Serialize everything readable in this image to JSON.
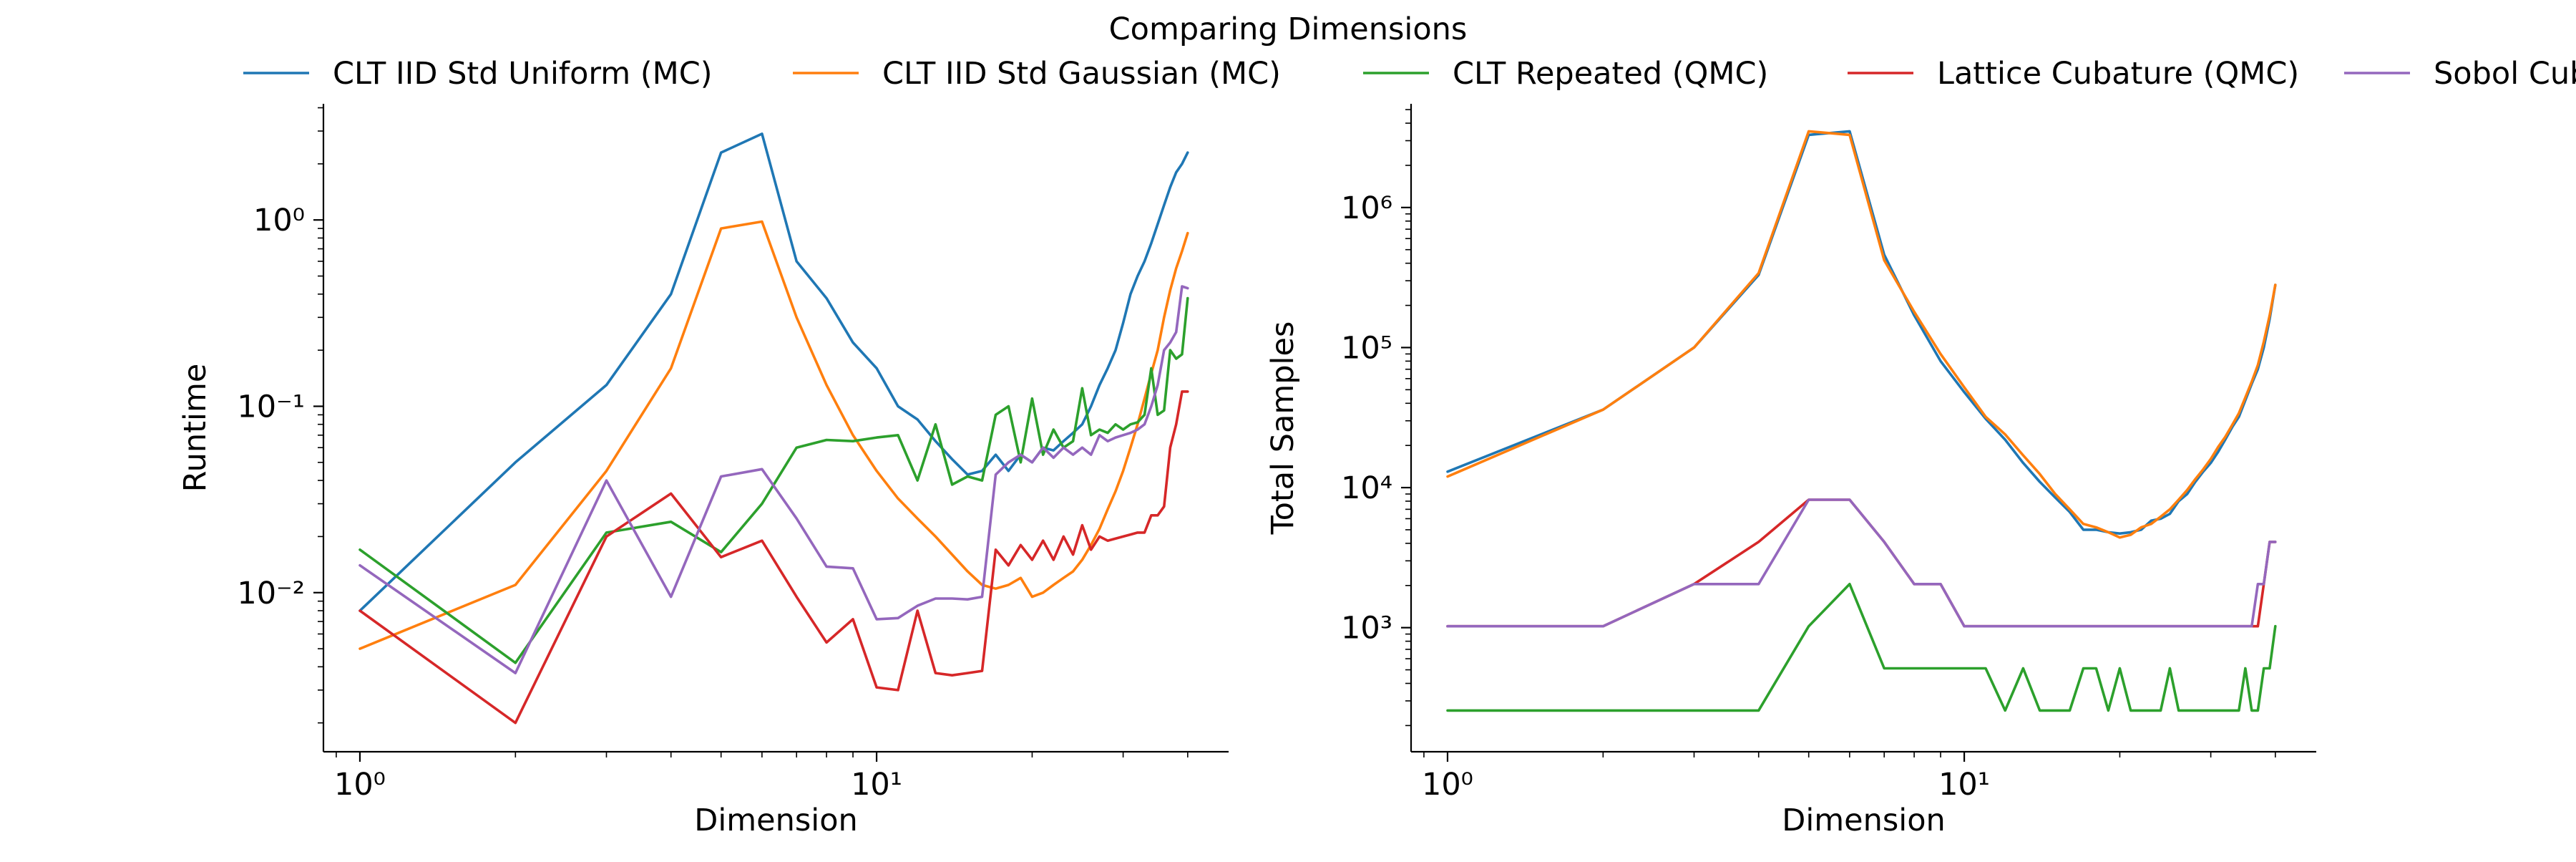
{
  "figure": {
    "title": "Comparing Dimensions"
  },
  "legend": [
    {
      "label": "CLT IID Std Uniform (MC)",
      "color": "#1f77b4"
    },
    {
      "label": "CLT IID Std Gaussian (MC)",
      "color": "#ff7f0e"
    },
    {
      "label": "CLT Repeated (QMC)",
      "color": "#2ca02c"
    },
    {
      "label": "Lattice Cubature (QMC)",
      "color": "#d62728"
    },
    {
      "label": "Sobol Cubature (QMC)",
      "color": "#9467bd"
    }
  ],
  "chart_data": [
    {
      "type": "line",
      "xlabel": "Dimension",
      "ylabel": "Runtime",
      "xscale": "log",
      "yscale": "log",
      "xlim": [
        0.85,
        48
      ],
      "ylim": [
        0.0014,
        4.2
      ],
      "xticks": [
        {
          "value": 1,
          "label": "10^0"
        },
        {
          "value": 10,
          "label": "10^1"
        }
      ],
      "yticks": [
        {
          "value": 0.01,
          "label": "10^-2"
        },
        {
          "value": 0.1,
          "label": "10^-1"
        },
        {
          "value": 1,
          "label": "10^0"
        }
      ],
      "grid": false,
      "series": [
        {
          "name": "CLT IID Std Uniform (MC)",
          "color": "#1f77b4",
          "x": [
            1,
            2,
            3,
            4,
            5,
            6,
            7,
            8,
            9,
            10,
            11,
            12,
            13,
            14,
            15,
            16,
            17,
            18,
            19,
            20,
            21,
            22,
            23,
            24,
            25,
            26,
            27,
            28,
            29,
            30,
            31,
            32,
            33,
            34,
            35,
            36,
            37,
            38,
            39,
            40
          ],
          "y": [
            0.008,
            0.05,
            0.13,
            0.4,
            2.3,
            2.9,
            0.6,
            0.38,
            0.22,
            0.16,
            0.1,
            0.085,
            0.065,
            0.052,
            0.043,
            0.045,
            0.055,
            0.045,
            0.055,
            0.05,
            0.06,
            0.058,
            0.065,
            0.072,
            0.08,
            0.1,
            0.13,
            0.16,
            0.2,
            0.28,
            0.4,
            0.5,
            0.6,
            0.75,
            0.95,
            1.2,
            1.5,
            1.8,
            2.0,
            2.3
          ]
        },
        {
          "name": "CLT IID Std Gaussian (MC)",
          "color": "#ff7f0e",
          "x": [
            1,
            2,
            3,
            4,
            5,
            6,
            7,
            8,
            9,
            10,
            11,
            12,
            13,
            14,
            15,
            16,
            17,
            18,
            19,
            20,
            21,
            22,
            23,
            24,
            25,
            26,
            27,
            28,
            29,
            30,
            31,
            32,
            33,
            34,
            35,
            36,
            37,
            38,
            39,
            40
          ],
          "y": [
            0.005,
            0.011,
            0.045,
            0.16,
            0.9,
            0.98,
            0.3,
            0.13,
            0.07,
            0.045,
            0.032,
            0.025,
            0.02,
            0.016,
            0.013,
            0.011,
            0.0105,
            0.011,
            0.012,
            0.0095,
            0.01,
            0.011,
            0.012,
            0.013,
            0.015,
            0.018,
            0.022,
            0.028,
            0.035,
            0.045,
            0.06,
            0.08,
            0.11,
            0.15,
            0.2,
            0.3,
            0.42,
            0.55,
            0.68,
            0.85
          ]
        },
        {
          "name": "CLT Repeated (QMC)",
          "color": "#2ca02c",
          "x": [
            1,
            2,
            3,
            4,
            5,
            6,
            7,
            8,
            9,
            10,
            11,
            12,
            13,
            14,
            15,
            16,
            17,
            18,
            19,
            20,
            21,
            22,
            23,
            24,
            25,
            26,
            27,
            28,
            29,
            30,
            31,
            32,
            33,
            34,
            35,
            36,
            37,
            38,
            39,
            40
          ],
          "y": [
            0.017,
            0.0042,
            0.021,
            0.024,
            0.0165,
            0.03,
            0.06,
            0.066,
            0.065,
            0.068,
            0.07,
            0.04,
            0.08,
            0.038,
            0.042,
            0.04,
            0.09,
            0.1,
            0.05,
            0.11,
            0.055,
            0.075,
            0.06,
            0.065,
            0.125,
            0.07,
            0.075,
            0.072,
            0.08,
            0.075,
            0.08,
            0.082,
            0.09,
            0.16,
            0.09,
            0.095,
            0.2,
            0.18,
            0.19,
            0.38
          ]
        },
        {
          "name": "Lattice Cubature (QMC)",
          "color": "#d62728",
          "x": [
            1,
            2,
            3,
            4,
            5,
            6,
            7,
            8,
            9,
            10,
            11,
            12,
            13,
            14,
            15,
            16,
            17,
            18,
            19,
            20,
            21,
            22,
            23,
            24,
            25,
            26,
            27,
            28,
            29,
            30,
            31,
            32,
            33,
            34,
            35,
            36,
            37,
            38,
            39,
            40
          ],
          "y": [
            0.008,
            0.002,
            0.02,
            0.034,
            0.0155,
            0.019,
            0.0095,
            0.0054,
            0.0072,
            0.0031,
            0.003,
            0.008,
            0.0037,
            0.0036,
            0.0037,
            0.0038,
            0.017,
            0.014,
            0.018,
            0.015,
            0.019,
            0.015,
            0.02,
            0.016,
            0.023,
            0.017,
            0.02,
            0.019,
            0.0195,
            0.02,
            0.0205,
            0.021,
            0.021,
            0.026,
            0.026,
            0.029,
            0.06,
            0.08,
            0.12,
            0.12
          ]
        },
        {
          "name": "Sobol Cubature (QMC)",
          "color": "#9467bd",
          "x": [
            1,
            2,
            3,
            4,
            5,
            6,
            7,
            8,
            9,
            10,
            11,
            12,
            13,
            14,
            15,
            16,
            17,
            18,
            19,
            20,
            21,
            22,
            23,
            24,
            25,
            26,
            27,
            28,
            29,
            30,
            31,
            32,
            33,
            34,
            35,
            36,
            37,
            38,
            39,
            40
          ],
          "y": [
            0.014,
            0.0037,
            0.04,
            0.0095,
            0.042,
            0.046,
            0.025,
            0.0138,
            0.0135,
            0.0072,
            0.0073,
            0.0085,
            0.0093,
            0.0093,
            0.0092,
            0.0095,
            0.043,
            0.05,
            0.055,
            0.05,
            0.06,
            0.053,
            0.06,
            0.055,
            0.06,
            0.055,
            0.07,
            0.065,
            0.068,
            0.07,
            0.072,
            0.075,
            0.08,
            0.1,
            0.13,
            0.2,
            0.22,
            0.25,
            0.44,
            0.43
          ]
        }
      ]
    },
    {
      "type": "line",
      "xlabel": "Dimension",
      "ylabel": "Total Samples",
      "xscale": "log",
      "yscale": "log",
      "xlim": [
        0.85,
        48
      ],
      "ylim": [
        130,
        5500000
      ],
      "xticks": [
        {
          "value": 1,
          "label": "10^0"
        },
        {
          "value": 10,
          "label": "10^1"
        }
      ],
      "yticks": [
        {
          "value": 1000,
          "label": "10^3"
        },
        {
          "value": 10000,
          "label": "10^4"
        },
        {
          "value": 100000,
          "label": "10^5"
        },
        {
          "value": 1000000,
          "label": "10^6"
        }
      ],
      "grid": false,
      "series": [
        {
          "name": "CLT IID Std Uniform (MC)",
          "color": "#1f77b4",
          "x": [
            1,
            2,
            3,
            4,
            5,
            6,
            7,
            8,
            9,
            10,
            11,
            12,
            13,
            14,
            15,
            16,
            17,
            18,
            19,
            20,
            21,
            22,
            23,
            24,
            25,
            26,
            27,
            28,
            29,
            30,
            31,
            32,
            33,
            34,
            35,
            36,
            37,
            38,
            39,
            40
          ],
          "y": [
            13000,
            36000,
            100000,
            330000,
            3300000,
            3500000,
            460000,
            170000,
            80000,
            48000,
            31000,
            22000,
            15000,
            11000,
            8500,
            6700,
            5000,
            5000,
            4800,
            4700,
            4800,
            5000,
            5800,
            6000,
            6500,
            8000,
            9000,
            11000,
            13000,
            15000,
            18000,
            22000,
            27000,
            32000,
            42000,
            55000,
            70000,
            100000,
            160000,
            280000
          ]
        },
        {
          "name": "CLT IID Std Gaussian (MC)",
          "color": "#ff7f0e",
          "x": [
            1,
            2,
            3,
            4,
            5,
            6,
            7,
            8,
            9,
            10,
            11,
            12,
            13,
            14,
            15,
            16,
            17,
            18,
            19,
            20,
            21,
            22,
            23,
            24,
            25,
            26,
            27,
            28,
            29,
            30,
            31,
            32,
            33,
            34,
            35,
            36,
            37,
            38,
            39,
            40
          ],
          "y": [
            12000,
            36000,
            100000,
            340000,
            3500000,
            3300000,
            420000,
            180000,
            90000,
            52000,
            32000,
            24000,
            17000,
            12500,
            9000,
            7000,
            5500,
            5200,
            4800,
            4400,
            4600,
            5200,
            5500,
            6200,
            7000,
            8200,
            9600,
            11500,
            13500,
            16000,
            19500,
            23000,
            28000,
            34000,
            44000,
            57000,
            75000,
            110000,
            170000,
            280000
          ]
        },
        {
          "name": "CLT Repeated (QMC)",
          "color": "#2ca02c",
          "x": [
            1,
            2,
            3,
            4,
            5,
            6,
            7,
            8,
            9,
            10,
            11,
            12,
            13,
            14,
            15,
            16,
            17,
            18,
            19,
            20,
            21,
            22,
            23,
            24,
            25,
            26,
            27,
            28,
            29,
            30,
            31,
            32,
            33,
            34,
            35,
            36,
            37,
            38,
            39,
            40
          ],
          "y": [
            256,
            256,
            256,
            256,
            1024,
            2048,
            512,
            512,
            512,
            512,
            512,
            256,
            512,
            256,
            256,
            256,
            512,
            512,
            256,
            512,
            256,
            256,
            256,
            256,
            512,
            256,
            256,
            256,
            256,
            256,
            256,
            256,
            256,
            256,
            512,
            256,
            256,
            512,
            512,
            1024
          ]
        },
        {
          "name": "Lattice Cubature (QMC)",
          "color": "#d62728",
          "x": [
            1,
            2,
            3,
            4,
            5,
            6,
            7,
            8,
            9,
            10,
            11,
            12,
            13,
            14,
            15,
            16,
            17,
            18,
            19,
            20,
            21,
            22,
            23,
            24,
            25,
            26,
            27,
            28,
            29,
            30,
            31,
            32,
            33,
            34,
            35,
            36,
            37,
            38,
            39,
            40
          ],
          "y": [
            1024,
            1024,
            2048,
            4096,
            8192,
            8192,
            4096,
            2048,
            2048,
            1024,
            1024,
            1024,
            1024,
            1024,
            1024,
            1024,
            1024,
            1024,
            1024,
            1024,
            1024,
            1024,
            1024,
            1024,
            1024,
            1024,
            1024,
            1024,
            1024,
            1024,
            1024,
            1024,
            1024,
            1024,
            1024,
            1024,
            1024,
            2048,
            4096,
            4096
          ]
        },
        {
          "name": "Sobol Cubature (QMC)",
          "color": "#9467bd",
          "x": [
            1,
            2,
            3,
            4,
            5,
            6,
            7,
            8,
            9,
            10,
            11,
            12,
            13,
            14,
            15,
            16,
            17,
            18,
            19,
            20,
            21,
            22,
            23,
            24,
            25,
            26,
            27,
            28,
            29,
            30,
            31,
            32,
            33,
            34,
            35,
            36,
            37,
            38,
            39,
            40
          ],
          "y": [
            1024,
            1024,
            2048,
            2048,
            8192,
            8192,
            4096,
            2048,
            2048,
            1024,
            1024,
            1024,
            1024,
            1024,
            1024,
            1024,
            1024,
            1024,
            1024,
            1024,
            1024,
            1024,
            1024,
            1024,
            1024,
            1024,
            1024,
            1024,
            1024,
            1024,
            1024,
            1024,
            1024,
            1024,
            1024,
            1024,
            2048,
            2048,
            4096,
            4096
          ]
        }
      ]
    }
  ]
}
